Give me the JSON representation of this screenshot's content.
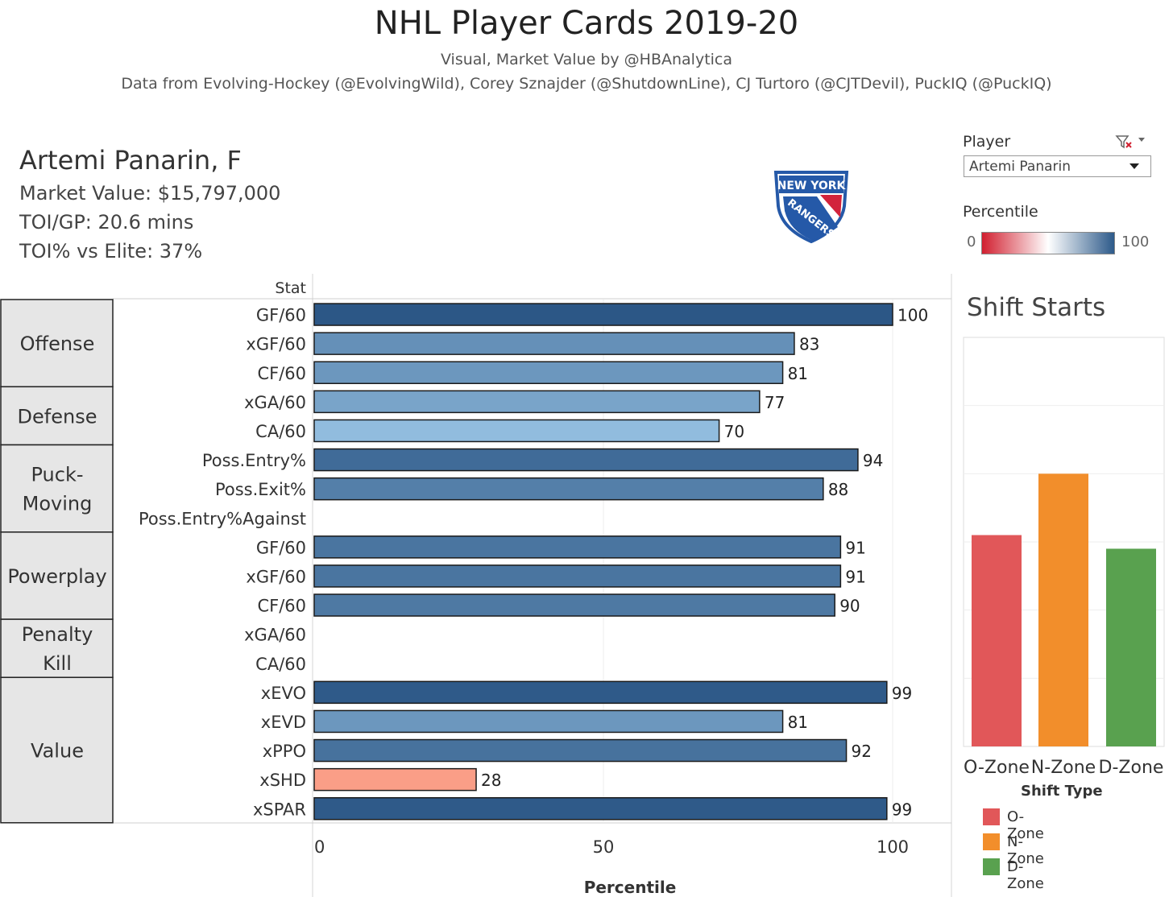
{
  "header": {
    "title": "NHL Player Cards 2019-20",
    "subtitle_1": "Visual, Market Value by @HBAnalytica",
    "subtitle_2": "Data from Evolving-Hockey (@EvolvingWild), Corey Sznajder (@ShutdownLine), CJ Turtoro (@CJTDevil), PuckIQ (@PuckIQ)"
  },
  "player": {
    "name_line": "Artemi Panarin, F",
    "market_value": "Market Value: $15,797,000",
    "toi_gp": "TOI/GP: 20.6 mins",
    "toi_vs_elite": "TOI% vs Elite: 37%"
  },
  "team_logo": {
    "text_top": "NEW YORK",
    "text_diag": "RANGERS",
    "colors": {
      "blue": "#2559a8",
      "red": "#d2233c",
      "white": "#ffffff"
    }
  },
  "controls": {
    "player_filter_label": "Player",
    "player_filter_value": "Artemi Panarin",
    "percentile_legend_title": "Percentile",
    "percentile_legend_min": "0",
    "percentile_legend_max": "100",
    "percentile_colors": [
      "#d11f2f",
      "#ffffff",
      "#2d5a8a"
    ]
  },
  "chart_data": [
    {
      "type": "bar",
      "orientation": "horizontal",
      "row_header": "Stat",
      "xlabel": "Percentile",
      "xlim": [
        0,
        100
      ],
      "xticks": [
        "0",
        "50",
        "100"
      ],
      "grid": true,
      "groups": [
        {
          "name": "Offense",
          "stats": [
            "GF/60",
            "xGF/60",
            "CF/60"
          ]
        },
        {
          "name": "Defense",
          "stats": [
            "xGA/60",
            "CA/60"
          ]
        },
        {
          "name": "Puck-Moving",
          "stats": [
            "Poss.Entry%",
            "Poss.Exit%",
            "Poss.Entry%Against"
          ]
        },
        {
          "name": "Powerplay",
          "stats": [
            "GF/60",
            "xGF/60",
            "CF/60"
          ]
        },
        {
          "name": "Penalty Kill",
          "stats": [
            "xGA/60",
            "CA/60"
          ]
        },
        {
          "name": "Value",
          "stats": [
            "xEVO",
            "xEVD",
            "xPPO",
            "xSHD",
            "xSPAR"
          ]
        }
      ],
      "categories": [
        "GF/60",
        "xGF/60",
        "CF/60",
        "xGA/60",
        "CA/60",
        "Poss.Entry%",
        "Poss.Exit%",
        "Poss.Entry%Against",
        "GF/60",
        "xGF/60",
        "CF/60",
        "xGA/60",
        "CA/60",
        "xEVO",
        "xEVD",
        "xPPO",
        "xSHD",
        "xSPAR"
      ],
      "values": [
        100,
        83,
        81,
        77,
        70,
        94,
        88,
        null,
        91,
        91,
        90,
        null,
        null,
        99,
        81,
        92,
        28,
        99
      ],
      "data_labels": [
        "100",
        "83",
        "81",
        "77",
        "70",
        "94",
        "88",
        "",
        "91",
        "91",
        "90",
        "",
        "",
        "99",
        "81",
        "92",
        "28",
        "99"
      ]
    },
    {
      "type": "bar",
      "title": "Shift Starts",
      "xlabel": "Shift Type",
      "categories": [
        "O-Zone",
        "N-Zone",
        "D-Zone"
      ],
      "values": [
        0.31,
        0.4,
        0.29
      ],
      "ylim": [
        0,
        0.6
      ],
      "grid": true,
      "colors": [
        "#e15759",
        "#f28e2b",
        "#59a14f"
      ],
      "legend": {
        "title": "Shift Type",
        "placement": "bottom-right",
        "items": [
          "O-Zone",
          "N-Zone",
          "D-Zone"
        ]
      }
    }
  ]
}
